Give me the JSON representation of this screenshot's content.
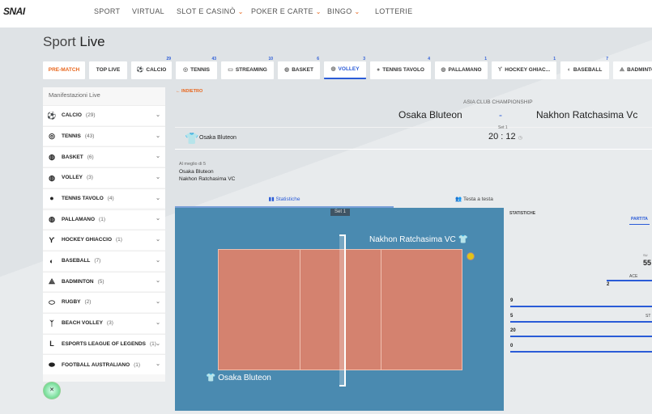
{
  "brand": "SNAI",
  "nav": [
    {
      "label": "SPORT"
    },
    {
      "label": "VIRTUAL"
    },
    {
      "label": "SLOT E CASINÒ",
      "dropdown": true
    },
    {
      "label": "POKER E CARTE",
      "dropdown": true
    },
    {
      "label": "BINGO",
      "dropdown": true
    },
    {
      "label": "LOTTERIE"
    }
  ],
  "page_title": {
    "a": "Sport",
    "b": "Live"
  },
  "tabs": [
    {
      "label": "PRE-MATCH"
    },
    {
      "label": "TOP LIVE"
    },
    {
      "label": "CALCIO",
      "count": "29",
      "icon": "soccer-icon"
    },
    {
      "label": "TENNIS",
      "count": "43",
      "icon": "tennis-icon"
    },
    {
      "label": "STREAMING",
      "count": "10",
      "icon": "tv-icon"
    },
    {
      "label": "BASKET",
      "count": "6",
      "icon": "basketball-icon"
    },
    {
      "label": "VOLLEY",
      "count": "3",
      "icon": "volleyball-icon",
      "active": true
    },
    {
      "label": "TENNIS TAVOLO",
      "count": "4",
      "icon": "table-tennis-icon"
    },
    {
      "label": "PALLAMANO",
      "count": "1",
      "icon": "handball-icon"
    },
    {
      "label": "HOCKEY GHIAC...",
      "count": "1",
      "icon": "hockey-icon"
    },
    {
      "label": "BASEBALL",
      "count": "7",
      "icon": "baseball-icon"
    },
    {
      "label": "BADMINTO",
      "icon": "badminton-icon"
    }
  ],
  "sidebar": {
    "title": "Manifestazioni Live",
    "items": [
      {
        "label": "CALCIO",
        "count": "(29)",
        "icon": "soccer-icon"
      },
      {
        "label": "TENNIS",
        "count": "(43)",
        "icon": "tennis-icon"
      },
      {
        "label": "BASKET",
        "count": "(6)",
        "icon": "basketball-icon"
      },
      {
        "label": "VOLLEY",
        "count": "(3)",
        "icon": "volleyball-icon"
      },
      {
        "label": "TENNIS TAVOLO",
        "count": "(4)",
        "icon": "table-tennis-icon"
      },
      {
        "label": "PALLAMANO",
        "count": "(1)",
        "icon": "handball-icon"
      },
      {
        "label": "HOCKEY GHIACCIO",
        "count": "(1)",
        "icon": "hockey-icon"
      },
      {
        "label": "BASEBALL",
        "count": "(7)",
        "icon": "baseball-icon"
      },
      {
        "label": "BADMINTON",
        "count": "(5)",
        "icon": "badminton-icon"
      },
      {
        "label": "RUGBY",
        "count": "(2)",
        "icon": "rugby-icon"
      },
      {
        "label": "BEACH VOLLEY",
        "count": "(3)",
        "icon": "beach-volley-icon"
      },
      {
        "label": "ESPORTS LEAGUE OF LEGENDS",
        "count": "(1)",
        "icon": "lol-icon"
      },
      {
        "label": "FOOTBALL AUSTRALIANO",
        "count": "(1)",
        "icon": "aussie-football-icon"
      }
    ]
  },
  "event": {
    "back": "INDIETRO",
    "competition": "ASIA CLUB CHAMPIONSHIP",
    "home": "Osaka Bluteon",
    "separator": "-",
    "away": "Nakhon Ratchasima Vc",
    "serving": "Osaka Bluteon",
    "set_label": "Set 1",
    "score": "20 : 12",
    "best_of": "Al meglio di 5",
    "team1": "Osaka Bluteon",
    "team2": "Nakhon Ratchasima VC"
  },
  "subtabs": {
    "stats": "Statistiche",
    "h2h": "Testa a testa"
  },
  "court": {
    "set": "Set 1",
    "top_team": "Nakhon Ratchasima VC",
    "bottom_team": "Osaka Bluteon"
  },
  "stats": {
    "title": "STATISTICHE",
    "tab": "PARTITA",
    "partial_pct": "55",
    "partial_label_a": "SU",
    "ace_label": "ACE",
    "ace_value": "2",
    "partial_label_b": "ST",
    "rows": [
      "9",
      "5",
      "20",
      "0"
    ]
  },
  "colors": {
    "accent": "#2a5bd7",
    "orange": "#e8661c",
    "court_bg": "#4a8ab0",
    "court_floor": "#d4826f"
  }
}
